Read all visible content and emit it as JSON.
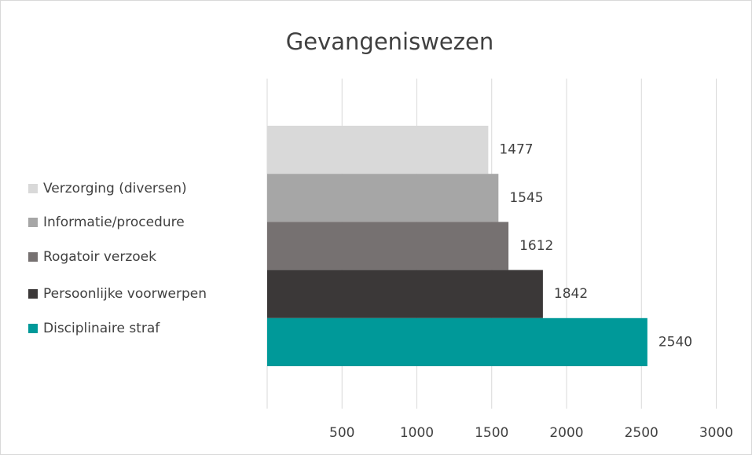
{
  "chart_data": {
    "type": "bar",
    "orientation": "horizontal",
    "title": "Gevangeniswezen",
    "categories": [
      "Verzorging (diversen)",
      "Informatie/procedure",
      "Rogatoir verzoek",
      "Persoonlijke voorwerpen",
      "Disciplinaire straf"
    ],
    "values": [
      1477,
      1545,
      1612,
      1842,
      2540
    ],
    "colors": [
      "#d9d9d9",
      "#a6a6a6",
      "#767171",
      "#3b3838",
      "#009999"
    ],
    "xlim": [
      0,
      3000
    ],
    "xticks": [
      500,
      1000,
      1500,
      2000,
      2500,
      3000
    ],
    "grid": true,
    "legend": "left"
  }
}
